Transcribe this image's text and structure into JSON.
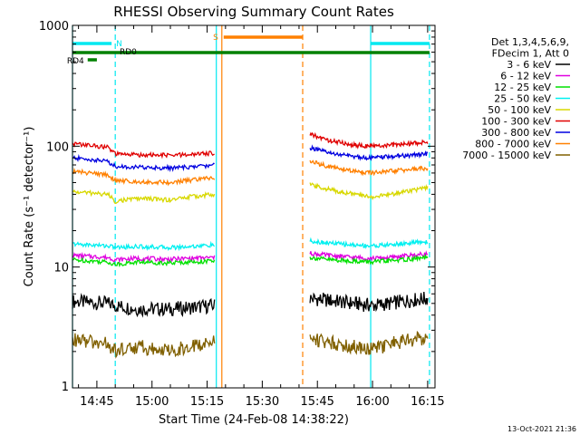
{
  "title": "RHESSI Observing Summary Count Rates",
  "footer_date": "13-Oct-2021 21:36",
  "chart_data": {
    "type": "line",
    "title": "RHESSI Observing Summary Count Rates",
    "xlabel": "Start Time (24-Feb-08 14:38:22)",
    "ylabel": "Count Rate (s⁻¹ detector⁻¹)",
    "y_scale": "log",
    "ylim": [
      1,
      1000
    ],
    "xlim": [
      "14:38:22",
      "16:17:00"
    ],
    "x_ticks": [
      "14:45",
      "15:00",
      "15:15",
      "15:30",
      "15:45",
      "16:00",
      "16:15"
    ],
    "y_ticks": [
      "1",
      "10",
      "100",
      "1000"
    ],
    "grid": false,
    "legend_position": "right",
    "legend_header": [
      "Det 1,3,4,5,6,9,",
      "FDecim 1, Att 0"
    ],
    "series": [
      {
        "name": "3 - 6 keV",
        "color": "#000000",
        "segments": [
          {
            "x": [
              "14:38:22",
              "14:48:00",
              "14:50:00",
              "14:56:00",
              "15:05:00",
              "15:10:00",
              "15:17:00"
            ],
            "y": [
              5.2,
              5.0,
              4.8,
              4.5,
              4.5,
              4.6,
              4.8
            ]
          },
          {
            "x": [
              "15:43:00",
              "15:48:00",
              "15:55:00",
              "16:00:00",
              "16:05:00",
              "16:10:00",
              "16:15:00"
            ],
            "y": [
              5.5,
              5.3,
              5.0,
              4.8,
              5.0,
              5.3,
              5.5
            ]
          }
        ]
      },
      {
        "name": "6 - 12 keV",
        "color": "#e000e0",
        "segments": [
          {
            "x": [
              "14:38:22",
              "14:48:00",
              "14:50:00",
              "14:56:00",
              "15:05:00",
              "15:10:00",
              "15:17:00"
            ],
            "y": [
              12.5,
              12.0,
              11.5,
              11.8,
              11.6,
              11.8,
              12.0
            ]
          },
          {
            "x": [
              "15:43:00",
              "15:48:00",
              "15:55:00",
              "16:00:00",
              "16:05:00",
              "16:10:00",
              "16:15:00"
            ],
            "y": [
              13.0,
              12.5,
              12.0,
              11.8,
              12.0,
              12.5,
              12.8
            ]
          }
        ]
      },
      {
        "name": "12 - 25 keV",
        "color": "#00e000",
        "segments": [
          {
            "x": [
              "14:38:22",
              "14:48:00",
              "14:50:00",
              "14:56:00",
              "15:05:00",
              "15:10:00",
              "15:17:00"
            ],
            "y": [
              11.5,
              11.0,
              10.5,
              11.0,
              10.8,
              11.0,
              11.2
            ]
          },
          {
            "x": [
              "15:43:00",
              "15:48:00",
              "15:55:00",
              "16:00:00",
              "16:05:00",
              "16:10:00",
              "16:15:00"
            ],
            "y": [
              12.0,
              11.5,
              11.2,
              11.0,
              11.3,
              11.6,
              12.0
            ]
          }
        ]
      },
      {
        "name": "25 - 50 keV",
        "color": "#00f0f0",
        "segments": [
          {
            "x": [
              "14:38:22",
              "14:48:00",
              "14:50:00",
              "14:56:00",
              "15:05:00",
              "15:10:00",
              "15:17:00"
            ],
            "y": [
              15.5,
              15.0,
              14.5,
              14.8,
              14.5,
              14.8,
              15.2
            ]
          },
          {
            "x": [
              "15:43:00",
              "15:48:00",
              "15:55:00",
              "16:00:00",
              "16:05:00",
              "16:10:00",
              "16:15:00"
            ],
            "y": [
              16.5,
              15.8,
              15.2,
              15.0,
              15.3,
              15.8,
              16.2
            ]
          }
        ]
      },
      {
        "name": "50 - 100 keV",
        "color": "#d8d800",
        "segments": [
          {
            "x": [
              "14:38:22",
              "14:48:00",
              "14:50:00",
              "14:56:00",
              "15:05:00",
              "15:10:00",
              "15:17:00"
            ],
            "y": [
              42,
              40,
              35,
              37,
              36,
              38,
              40
            ]
          },
          {
            "x": [
              "15:43:00",
              "15:48:00",
              "15:55:00",
              "16:00:00",
              "16:05:00",
              "16:10:00",
              "16:15:00"
            ],
            "y": [
              48,
              44,
              40,
              38,
              40,
              43,
              45
            ]
          }
        ]
      },
      {
        "name": "100 - 300 keV",
        "color": "#e00000",
        "segments": [
          {
            "x": [
              "14:38:22",
              "14:48:00",
              "14:50:00",
              "14:56:00",
              "15:05:00",
              "15:10:00",
              "15:17:00"
            ],
            "y": [
              105,
              98,
              86,
              85,
              84,
              85,
              88
            ]
          },
          {
            "x": [
              "15:43:00",
              "15:48:00",
              "15:55:00",
              "16:00:00",
              "16:05:00",
              "16:10:00",
              "16:15:00"
            ],
            "y": [
              125,
              112,
              102,
              100,
              102,
              105,
              108
            ]
          }
        ]
      },
      {
        "name": "300 - 800 keV",
        "color": "#0000e0",
        "segments": [
          {
            "x": [
              "14:38:22",
              "14:48:00",
              "14:50:00",
              "14:56:00",
              "15:05:00",
              "15:10:00",
              "15:17:00"
            ],
            "y": [
              80,
              75,
              68,
              67,
              66,
              67,
              70
            ]
          },
          {
            "x": [
              "15:43:00",
              "15:48:00",
              "15:55:00",
              "16:00:00",
              "16:05:00",
              "16:10:00",
              "16:15:00"
            ],
            "y": [
              97,
              88,
              82,
              80,
              82,
              84,
              86
            ]
          }
        ]
      },
      {
        "name": "800 - 7000 keV",
        "color": "#ff8000",
        "segments": [
          {
            "x": [
              "14:38:22",
              "14:48:00",
              "14:50:00",
              "14:56:00",
              "15:05:00",
              "15:10:00",
              "15:17:00"
            ],
            "y": [
              62,
              58,
              52,
              51,
              50,
              52,
              55
            ]
          },
          {
            "x": [
              "15:43:00",
              "15:48:00",
              "15:55:00",
              "16:00:00",
              "16:05:00",
              "16:10:00",
              "16:15:00"
            ],
            "y": [
              75,
              68,
              62,
              60,
              62,
              64,
              66
            ]
          }
        ]
      },
      {
        "name": "7000 - 15000 keV",
        "color": "#806000",
        "segments": [
          {
            "x": [
              "14:38:22",
              "14:48:00",
              "14:50:00",
              "14:56:00",
              "15:05:00",
              "15:10:00",
              "15:17:00"
            ],
            "y": [
              2.5,
              2.3,
              2.0,
              2.2,
              2.0,
              2.2,
              2.4
            ]
          },
          {
            "x": [
              "15:43:00",
              "15:48:00",
              "15:55:00",
              "16:00:00",
              "16:05:00",
              "16:10:00",
              "16:15:00"
            ],
            "y": [
              2.6,
              2.4,
              2.2,
              2.1,
              2.3,
              2.5,
              2.6
            ]
          }
        ]
      }
    ],
    "flag_bars": [
      {
        "label": "N",
        "color": "#00e8f0",
        "ranges": [
          [
            "14:38:22",
            "14:49:00"
          ],
          [
            "15:59:30",
            "16:15:30"
          ]
        ]
      },
      {
        "label": "S",
        "color": "#ff8000",
        "ranges": [
          [
            "15:19:30",
            "15:41:00"
          ]
        ]
      },
      {
        "label": "RD0",
        "color": "#008000",
        "ranges": [
          [
            "14:38:22",
            "16:15:30"
          ]
        ]
      },
      {
        "label": "RD4",
        "color": "#008000",
        "ranges": [
          [
            "14:42:30",
            "14:45:00"
          ]
        ]
      }
    ],
    "vertical_markers": [
      {
        "x": "14:38:22",
        "color": "#00e8f0",
        "style": "solid"
      },
      {
        "x": "14:50:00",
        "color": "#00e8f0",
        "style": "dashed"
      },
      {
        "x": "15:17:30",
        "color": "#00e8f0",
        "style": "solid"
      },
      {
        "x": "15:19:00",
        "color": "#ff8000",
        "style": "solid"
      },
      {
        "x": "15:41:00",
        "color": "#ff8000",
        "style": "dashed"
      },
      {
        "x": "15:59:30",
        "color": "#00e8f0",
        "style": "solid"
      },
      {
        "x": "16:15:30",
        "color": "#00e8f0",
        "style": "dashed"
      }
    ]
  }
}
